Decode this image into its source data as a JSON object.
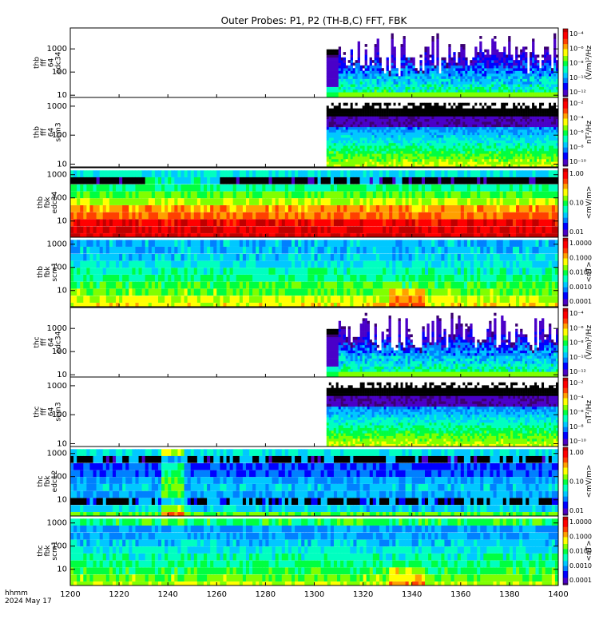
{
  "chart_data": {
    "type": "heatmap",
    "title": "Outer Probes: P1, P2 (TH-B,C) FFT, FBK",
    "x_axis": {
      "range": [
        1200,
        1400
      ],
      "ticks": [
        "1200",
        "1220",
        "1240",
        "1260",
        "1280",
        "1300",
        "1320",
        "1340",
        "1360",
        "1380",
        "1400"
      ],
      "footer_lines": [
        "hhmm",
        "2024 May 17"
      ]
    },
    "panels": [
      {
        "id": "p1",
        "label_lines": [
          "thb",
          "fff",
          "64",
          "edc34"
        ],
        "yscale": "log",
        "yrange": [
          8,
          8000
        ],
        "yticks": [
          "10",
          "100",
          "1000"
        ],
        "colorbar": {
          "scale": "log",
          "ticks": [
            "10⁻⁴",
            "10⁻⁶",
            "10⁻⁸",
            "10⁻¹⁰",
            "10⁻¹²"
          ],
          "unit": "(V/m)²/Hz"
        },
        "kind": "fff_e",
        "data_start": 1305,
        "spiky_start": 1310
      },
      {
        "id": "p2",
        "label_lines": [
          "thb",
          "fff",
          "64",
          "scm3"
        ],
        "yscale": "log",
        "yrange": [
          8,
          2000
        ],
        "yticks": [
          "10",
          "100",
          "1000"
        ],
        "colorbar": {
          "scale": "log",
          "ticks": [
            "10⁻²",
            "10⁻⁴",
            "10⁻⁶",
            "10⁻⁸",
            "10⁻¹⁰"
          ],
          "unit": "nT²/Hz"
        },
        "kind": "fff_b",
        "data_start": 1305,
        "spiky_start": 1310
      },
      {
        "id": "p3",
        "label_lines": [
          "thb",
          "fbk",
          "edc34"
        ],
        "yscale": "log",
        "yrange": [
          2,
          2000
        ],
        "yticks": [
          "10",
          "100",
          "1000"
        ],
        "colorbar": {
          "scale": "log",
          "ticks": [
            "1.00",
            "0.10",
            "0.01"
          ],
          "unit": "<mV/m>"
        },
        "kind": "fbk_e_thb",
        "rows": [
          {
            "f": 1090,
            "level": 0.38
          },
          {
            "f": 550,
            "level": 0.05
          },
          {
            "f": 270,
            "level": 0.45
          },
          {
            "f": 135,
            "level": 0.55
          },
          {
            "f": 68,
            "level": 0.62
          },
          {
            "f": 34,
            "level": 0.75
          },
          {
            "f": 17,
            "level": 0.8
          },
          {
            "f": 8.5,
            "level": 0.93
          },
          {
            "f": 4.2,
            "level": 0.95
          },
          {
            "f": 2.1,
            "level": 0.97
          }
        ]
      },
      {
        "id": "p4",
        "label_lines": [
          "thb",
          "fbk",
          "scm1"
        ],
        "yscale": "log",
        "yrange": [
          2,
          2000
        ],
        "yticks": [
          "10",
          "100",
          "1000"
        ],
        "colorbar": {
          "scale": "log",
          "ticks": [
            "1.0000",
            "0.1000",
            "0.0100",
            "0.0010",
            "0.0001"
          ],
          "unit": "<nT>"
        },
        "kind": "fbk_b",
        "rows": [
          {
            "f": 1090,
            "level": 0.32
          },
          {
            "f": 550,
            "level": 0.32
          },
          {
            "f": 270,
            "level": 0.35
          },
          {
            "f": 135,
            "level": 0.38
          },
          {
            "f": 68,
            "level": 0.42
          },
          {
            "f": 34,
            "level": 0.47
          },
          {
            "f": 17,
            "level": 0.52
          },
          {
            "f": 8.5,
            "level": 0.56
          },
          {
            "f": 4.2,
            "level": 0.63
          },
          {
            "f": 2.1,
            "level": 0.68
          }
        ]
      },
      {
        "id": "p5",
        "label_lines": [
          "thc",
          "fff",
          "64",
          "edc34"
        ],
        "yscale": "log",
        "yrange": [
          8,
          8000
        ],
        "yticks": [
          "10",
          "100",
          "1000"
        ],
        "colorbar": {
          "scale": "log",
          "ticks": [
            "10⁻⁴",
            "10⁻⁶",
            "10⁻⁸",
            "10⁻¹⁰",
            "10⁻¹²"
          ],
          "unit": "(V/m)²/Hz"
        },
        "kind": "fff_e",
        "data_start": 1305,
        "spiky_start": 1310
      },
      {
        "id": "p6",
        "label_lines": [
          "thc",
          "fff",
          "64",
          "scm3"
        ],
        "yscale": "log",
        "yrange": [
          8,
          2000
        ],
        "yticks": [
          "10",
          "100",
          "1000"
        ],
        "colorbar": {
          "scale": "log",
          "ticks": [
            "10⁻²",
            "10⁻⁴",
            "10⁻⁶",
            "10⁻⁸",
            "10⁻¹⁰"
          ],
          "unit": "nT²/Hz"
        },
        "kind": "fff_b",
        "data_start": 1305,
        "spiky_start": 1310
      },
      {
        "id": "p7",
        "label_lines": [
          "thc",
          "fbk",
          "edc12"
        ],
        "yscale": "log",
        "yrange": [
          2,
          2000
        ],
        "yticks": [
          "10",
          "100",
          "1000"
        ],
        "colorbar": {
          "scale": "log",
          "ticks": [
            "1.00",
            "0.10",
            "0.01"
          ],
          "unit": "<mV/m>"
        },
        "kind": "fbk_e_thc",
        "rows": [
          {
            "f": 1090,
            "level": 0.38
          },
          {
            "f": 550,
            "level": 0.05
          },
          {
            "f": 270,
            "level": 0.2
          },
          {
            "f": 135,
            "level": 0.22
          },
          {
            "f": 68,
            "level": 0.3
          },
          {
            "f": 34,
            "level": 0.33
          },
          {
            "f": 17,
            "level": 0.3
          },
          {
            "f": 8.5,
            "level": 0.12
          },
          {
            "f": 4.2,
            "level": 0.35
          },
          {
            "f": 2.1,
            "level": 0.55
          }
        ]
      },
      {
        "id": "p8",
        "label_lines": [
          "thc",
          "fbk",
          "scm1"
        ],
        "yscale": "log",
        "yrange": [
          2,
          2000
        ],
        "yticks": [
          "10",
          "100",
          "1000"
        ],
        "colorbar": {
          "scale": "log",
          "ticks": [
            "1.0000",
            "0.1000",
            "0.0100",
            "0.0010",
            "0.0001"
          ],
          "unit": "<nT>"
        },
        "kind": "fbk_b",
        "rows": [
          {
            "f": 1090,
            "level": 0.5
          },
          {
            "f": 550,
            "level": 0.28
          },
          {
            "f": 270,
            "level": 0.3
          },
          {
            "f": 135,
            "level": 0.34
          },
          {
            "f": 68,
            "level": 0.38
          },
          {
            "f": 34,
            "level": 0.42
          },
          {
            "f": 17,
            "level": 0.46
          },
          {
            "f": 8.5,
            "level": 0.5
          },
          {
            "f": 4.2,
            "level": 0.56
          },
          {
            "f": 2.1,
            "level": 0.62
          }
        ]
      }
    ],
    "colormap": [
      "#ffffff",
      "#000000",
      "#3a0070",
      "#4a00c8",
      "#0000ff",
      "#0080ff",
      "#00c8ff",
      "#00ffc0",
      "#00ff40",
      "#80ff00",
      "#ffff00",
      "#ffa000",
      "#ff4000",
      "#ff0000",
      "#c00000"
    ]
  }
}
